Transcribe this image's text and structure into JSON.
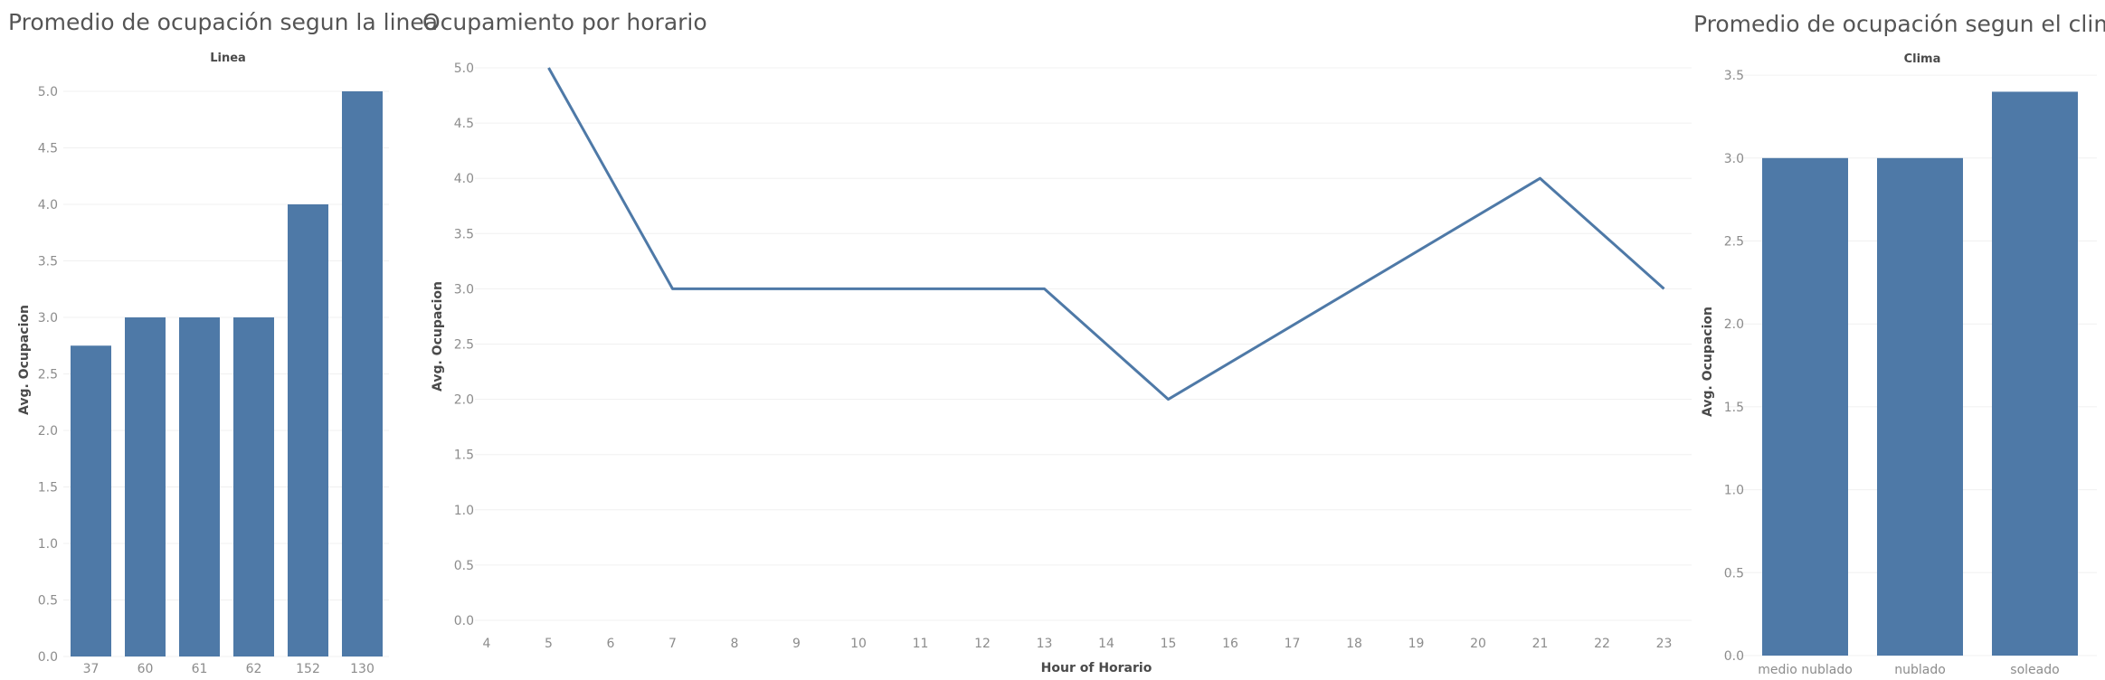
{
  "colors": {
    "bar": "#4E79A7",
    "line": "#4E79A7",
    "grid": "#f0f0f0",
    "text": "#8c8c8c"
  },
  "charts": {
    "linea": {
      "title": "Promedio de ocupación segun la linea"
    },
    "horario": {
      "title": "Ocupamiento por horario"
    },
    "clima": {
      "title": "Promedio de ocupación segun el clima"
    }
  },
  "chart_data": [
    {
      "type": "bar",
      "title": "Promedio de ocupación segun la linea",
      "header": "Linea",
      "ylabel": "Avg. Ocupacion",
      "xlabel": "",
      "categories": [
        "37",
        "60",
        "61",
        "62",
        "152",
        "130"
      ],
      "values": [
        2.75,
        3,
        3,
        3,
        4,
        5
      ],
      "ylim": [
        0,
        5.2
      ],
      "yticks": [
        "0.0",
        "0.5",
        "1.0",
        "1.5",
        "2.0",
        "2.5",
        "3.0",
        "3.5",
        "4.0",
        "4.5",
        "5.0"
      ],
      "grid": true
    },
    {
      "type": "line",
      "title": "Ocupamiento por horario",
      "xlabel": "Hour of Horario",
      "ylabel": "Avg. Ocupacion",
      "xticks": [
        "4",
        "5",
        "6",
        "7",
        "8",
        "9",
        "10",
        "11",
        "12",
        "13",
        "14",
        "15",
        "16",
        "17",
        "18",
        "19",
        "20",
        "21",
        "22",
        "23"
      ],
      "x": [
        5,
        7,
        13,
        15,
        21,
        23
      ],
      "y": [
        5,
        3,
        3,
        2,
        4,
        3
      ],
      "xlim": [
        4,
        23
      ],
      "ylim": [
        0,
        5
      ],
      "yticks": [
        "0.0",
        "0.5",
        "1.0",
        "1.5",
        "2.0",
        "2.5",
        "3.0",
        "3.5",
        "4.0",
        "4.5",
        "5.0"
      ],
      "grid": true
    },
    {
      "type": "bar",
      "title": "Promedio de ocupación segun el clima",
      "header": "Clima",
      "ylabel": "Avg. Ocupacion",
      "xlabel": "",
      "categories": [
        "medio nublado",
        "nublado",
        "soleado"
      ],
      "values": [
        3,
        3,
        3.4
      ],
      "ylim": [
        0,
        3.5
      ],
      "yticks": [
        "0.0",
        "0.5",
        "1.0",
        "1.5",
        "2.0",
        "2.5",
        "3.0",
        "3.5"
      ],
      "grid": true
    }
  ]
}
